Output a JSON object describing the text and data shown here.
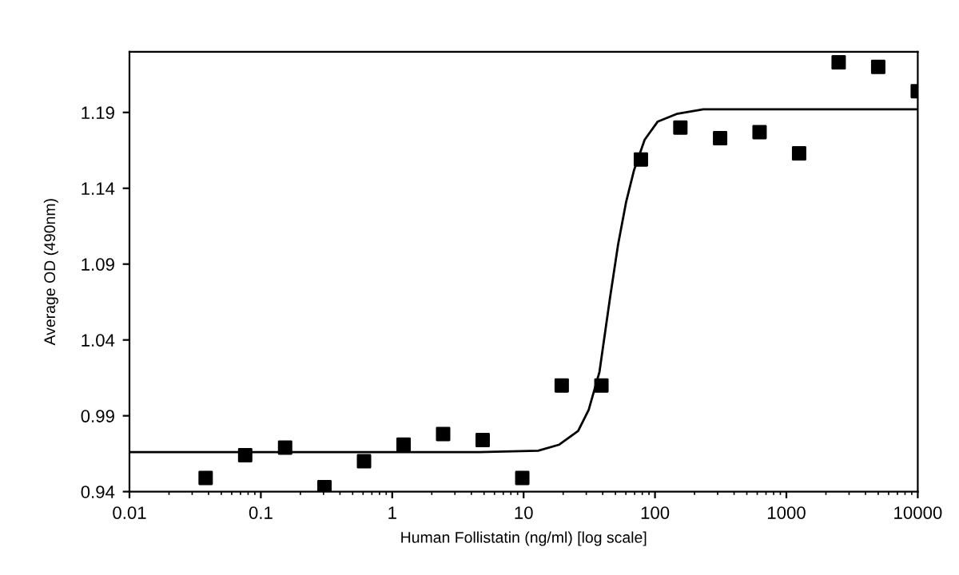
{
  "chart_data": {
    "type": "scatter",
    "xlabel": "Human Follistatin (ng/ml) [log scale]",
    "ylabel": "Average OD (490nm)",
    "log": "x",
    "xlim": [
      0.01,
      10000
    ],
    "xticks": [
      0.01,
      0.1,
      1,
      10,
      100,
      1000,
      10000
    ],
    "ylim": [
      0.94,
      1.23
    ],
    "yticks": [
      0.94,
      0.99,
      1.04,
      1.09,
      1.14,
      1.19
    ],
    "grid": false,
    "legend": false,
    "series": [
      {
        "marker": "square",
        "color": "#000000",
        "x": [
          0.038,
          0.076,
          0.153,
          0.305,
          0.61,
          1.22,
          2.44,
          4.88,
          9.77,
          19.5,
          39.1,
          78.1,
          156,
          313,
          625,
          1250,
          2500,
          5000,
          10000
        ],
        "values": [
          0.949,
          0.964,
          0.969,
          0.943,
          0.96,
          0.971,
          0.978,
          0.974,
          0.949,
          1.01,
          1.01,
          1.159,
          1.18,
          1.173,
          1.177,
          1.163,
          1.223,
          1.22,
          1.204
        ]
      },
      {
        "type": "line",
        "marker": "none",
        "line_style": "solid",
        "color": "#000000",
        "x": [
          0.01,
          4.6,
          12.9,
          18.7,
          26,
          31.3,
          37.8,
          45.5,
          52.4,
          60.3,
          69.3,
          83.4,
          105,
          146,
          233,
          10000
        ],
        "values": [
          0.966,
          0.966,
          0.967,
          0.971,
          0.98,
          0.994,
          1.019,
          1.068,
          1.103,
          1.131,
          1.152,
          1.172,
          1.184,
          1.189,
          1.192,
          1.192
        ]
      }
    ]
  }
}
